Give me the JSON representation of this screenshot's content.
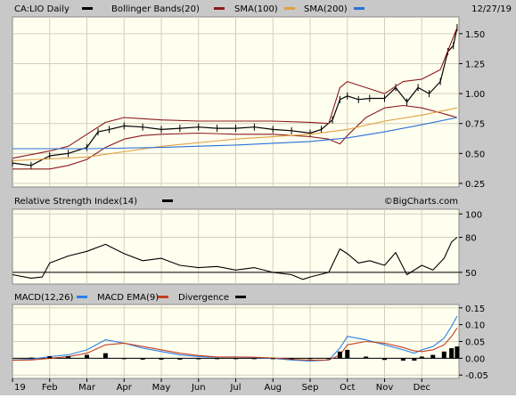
{
  "date": "12/27/19",
  "watermark": "©BigCharts.com",
  "colors": {
    "background": "#c8c8c8",
    "plot": "#fffff0",
    "price": "#000000",
    "bollinger": "#8b1a1a",
    "sma100": "#e0a040",
    "sma200": "#2a6fd6",
    "rsi": "#000000",
    "macd": "#2a7fe8",
    "macd_ema": "#c04020",
    "divergence": "#000000"
  },
  "chart_data": [
    {
      "type": "line",
      "panel": "price",
      "legend": [
        {
          "label": "CA:LIO Daily",
          "color": "#000000"
        },
        {
          "label": "Bollinger Bands(20)",
          "color": "#8b1a1a"
        },
        {
          "label": "SMA(100)",
          "color": "#e0a040"
        },
        {
          "label": "SMA(200)",
          "color": "#2a6fd6"
        }
      ],
      "ylim": [
        0.22,
        1.64
      ],
      "yticks": [
        0.25,
        0.5,
        0.75,
        1.0,
        1.25,
        1.5
      ],
      "ytick_labels": [
        "0.25",
        "0.50",
        "0.75",
        "1.00",
        "1.25",
        "1.50"
      ],
      "xlim": [
        0,
        12
      ],
      "x_months": [
        0,
        1,
        2,
        3,
        4,
        5,
        6,
        7,
        8,
        9,
        10,
        11
      ],
      "month_labels": [
        "19",
        "Feb",
        "Mar",
        "Apr",
        "May",
        "Jun",
        "Jul",
        "Aug",
        "Sep",
        "Oct",
        "Nov",
        "Dec"
      ],
      "series": [
        {
          "role": "price",
          "x": [
            0,
            0.5,
            1.0,
            1.5,
            2.0,
            2.3,
            2.6,
            3.0,
            3.5,
            4.0,
            4.5,
            5.0,
            5.5,
            6.0,
            6.5,
            7.0,
            7.5,
            8.0,
            8.3,
            8.6,
            8.8,
            9.0,
            9.3,
            9.6,
            10.0,
            10.3,
            10.6,
            10.9,
            11.2,
            11.5,
            11.7,
            11.85,
            11.95
          ],
          "y": [
            0.42,
            0.4,
            0.48,
            0.5,
            0.55,
            0.68,
            0.7,
            0.73,
            0.72,
            0.7,
            0.71,
            0.72,
            0.71,
            0.71,
            0.72,
            0.7,
            0.69,
            0.67,
            0.7,
            0.78,
            0.95,
            0.98,
            0.95,
            0.96,
            0.96,
            1.05,
            0.93,
            1.05,
            1.0,
            1.1,
            1.35,
            1.4,
            1.55
          ]
        },
        {
          "role": "bollinger-upper",
          "x": [
            0,
            1,
            1.5,
            2,
            2.5,
            3,
            3.5,
            4,
            5,
            6,
            7,
            8,
            8.5,
            8.8,
            9,
            9.5,
            10,
            10.5,
            11,
            11.5,
            11.95
          ],
          "y": [
            0.46,
            0.52,
            0.56,
            0.66,
            0.76,
            0.8,
            0.79,
            0.78,
            0.77,
            0.77,
            0.77,
            0.76,
            0.75,
            1.05,
            1.1,
            1.05,
            1.0,
            1.1,
            1.12,
            1.2,
            1.55
          ]
        },
        {
          "role": "bollinger-lower",
          "x": [
            0,
            1,
            1.5,
            2,
            2.5,
            3,
            3.5,
            4,
            5,
            6,
            7,
            8,
            8.5,
            8.8,
            9,
            9.5,
            10,
            10.5,
            11,
            11.5,
            11.95
          ],
          "y": [
            0.37,
            0.37,
            0.4,
            0.45,
            0.55,
            0.62,
            0.65,
            0.66,
            0.67,
            0.66,
            0.66,
            0.64,
            0.62,
            0.58,
            0.65,
            0.8,
            0.88,
            0.9,
            0.88,
            0.84,
            0.8
          ]
        },
        {
          "role": "sma100",
          "x": [
            0,
            2,
            4,
            6,
            8,
            9,
            10,
            11,
            11.95
          ],
          "y": [
            0.44,
            0.47,
            0.56,
            0.62,
            0.66,
            0.7,
            0.77,
            0.82,
            0.88
          ]
        },
        {
          "role": "sma200",
          "x": [
            0,
            2,
            4,
            6,
            8,
            9,
            10,
            11,
            11.95
          ],
          "y": [
            0.54,
            0.54,
            0.55,
            0.57,
            0.6,
            0.63,
            0.68,
            0.74,
            0.8
          ]
        }
      ]
    },
    {
      "type": "line",
      "panel": "rsi",
      "title": "Relative Strength Index(14)",
      "ylim": [
        40,
        104
      ],
      "yticks": [
        50,
        80,
        100
      ],
      "ytick_labels": [
        "50",
        "80",
        "100"
      ],
      "reference": 50,
      "series": [
        {
          "role": "rsi",
          "x": [
            0,
            0.5,
            0.8,
            1.0,
            1.5,
            2.0,
            2.5,
            3.0,
            3.5,
            4.0,
            4.5,
            5.0,
            5.5,
            6.0,
            6.5,
            7.0,
            7.5,
            7.8,
            8.0,
            8.5,
            8.8,
            9.0,
            9.3,
            9.6,
            10.0,
            10.3,
            10.6,
            11.0,
            11.3,
            11.6,
            11.8,
            11.95
          ],
          "y": [
            48,
            45,
            46,
            58,
            64,
            68,
            74,
            66,
            60,
            62,
            56,
            54,
            55,
            52,
            54,
            50,
            48,
            44,
            46,
            50,
            70,
            66,
            58,
            60,
            56,
            67,
            48,
            56,
            52,
            62,
            76,
            80
          ]
        }
      ]
    },
    {
      "type": "line",
      "panel": "macd",
      "legend": [
        {
          "label": "MACD(12,26)",
          "color": "#2a7fe8"
        },
        {
          "label": "MACD EMA(9)",
          "color": "#c04020"
        },
        {
          "label": "Divergence",
          "color": "#000000"
        }
      ],
      "ylim": [
        -0.06,
        0.16
      ],
      "yticks": [
        -0.05,
        0.0,
        0.05,
        0.1,
        0.15
      ],
      "ytick_labels": [
        "-0.05",
        "0.00",
        "0.05",
        "0.10",
        "0.15"
      ],
      "series": [
        {
          "role": "macd",
          "x": [
            0,
            0.5,
            1.0,
            1.5,
            2.0,
            2.5,
            3.0,
            3.5,
            4.0,
            4.5,
            5.0,
            5.5,
            6.0,
            6.5,
            7.0,
            7.5,
            8.0,
            8.5,
            8.8,
            9.0,
            9.5,
            10.0,
            10.5,
            10.8,
            11.0,
            11.3,
            11.6,
            11.8,
            11.95
          ],
          "y": [
            -0.005,
            -0.003,
            0.005,
            0.01,
            0.025,
            0.055,
            0.045,
            0.03,
            0.02,
            0.01,
            0.005,
            0.003,
            0.004,
            0.002,
            0.0,
            -0.005,
            -0.008,
            -0.005,
            0.03,
            0.065,
            0.055,
            0.04,
            0.025,
            0.015,
            0.025,
            0.035,
            0.06,
            0.095,
            0.125
          ]
        },
        {
          "role": "macd-ema",
          "x": [
            0,
            0.5,
            1.0,
            1.5,
            2.0,
            2.5,
            3.0,
            3.5,
            4.0,
            4.5,
            5.0,
            5.5,
            6.0,
            6.5,
            7.0,
            7.5,
            8.0,
            8.5,
            8.8,
            9.0,
            9.5,
            10.0,
            10.5,
            10.8,
            11.0,
            11.3,
            11.6,
            11.8,
            11.95
          ],
          "y": [
            -0.006,
            -0.005,
            0.0,
            0.005,
            0.015,
            0.04,
            0.045,
            0.035,
            0.025,
            0.015,
            0.008,
            0.004,
            0.004,
            0.003,
            0.001,
            -0.003,
            -0.006,
            -0.005,
            0.01,
            0.04,
            0.05,
            0.045,
            0.032,
            0.022,
            0.02,
            0.025,
            0.04,
            0.065,
            0.09
          ]
        },
        {
          "role": "divergence",
          "x": [
            0.5,
            1.0,
            1.5,
            2.0,
            2.5,
            3.0,
            3.5,
            4.0,
            4.5,
            5.0,
            5.5,
            6.0,
            6.5,
            7.0,
            7.5,
            8.0,
            8.5,
            8.8,
            9.0,
            9.5,
            10.0,
            10.5,
            10.8,
            11.0,
            11.3,
            11.6,
            11.8,
            11.95
          ],
          "y": [
            0.002,
            0.006,
            0.006,
            0.01,
            0.015,
            0.0,
            -0.004,
            -0.004,
            -0.004,
            -0.003,
            -0.001,
            0.0,
            -0.001,
            -0.001,
            -0.002,
            -0.002,
            0.0,
            0.02,
            0.025,
            0.005,
            -0.005,
            -0.007,
            -0.007,
            0.005,
            0.01,
            0.02,
            0.03,
            0.035
          ]
        }
      ]
    }
  ]
}
